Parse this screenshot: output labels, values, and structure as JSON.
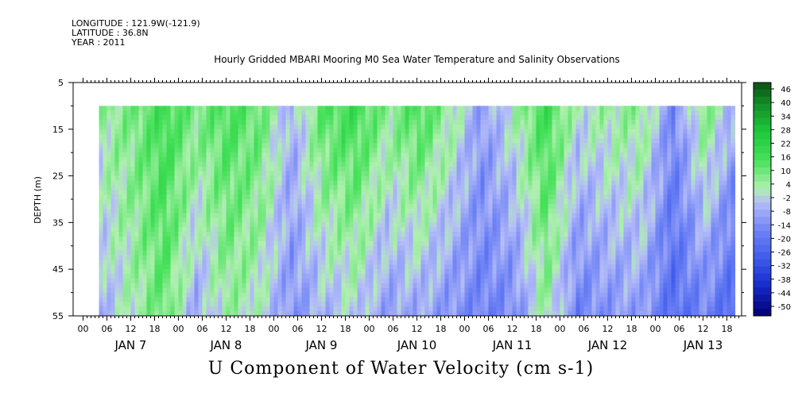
{
  "header": {
    "longitude": "LONGITUDE : 121.9W(-121.9)",
    "latitude": "LATITUDE : 36.8N",
    "year": "YEAR : 2011"
  },
  "chart_data": {
    "type": "heatmap",
    "title": "Hourly Gridded MBARI Mooring M0 Sea Water Temperature and Salinity Observations",
    "xlabel": "U Component of Water Velocity (cm s-1)",
    "ylabel": "DEPTH (m)",
    "y_ticks": [
      5,
      15,
      25,
      35,
      45,
      55
    ],
    "ylim": [
      55,
      5
    ],
    "data_depth_range": [
      10,
      55
    ],
    "x_hour_ticks": [
      "00",
      "06",
      "12",
      "18",
      "00",
      "06",
      "12",
      "18",
      "00",
      "06",
      "12",
      "18",
      "00",
      "06",
      "12",
      "18",
      "00",
      "06",
      "12",
      "18",
      "00",
      "06",
      "12",
      "18",
      "00",
      "06",
      "12",
      "18"
    ],
    "x_day_labels": [
      "JAN  7",
      "JAN  8",
      "JAN  9",
      "JAN 10",
      "JAN 11",
      "JAN 12",
      "JAN 13"
    ],
    "data_time_start": "JAN 7 04:00",
    "data_time_end": "JAN 13 23:00",
    "colorbar_labels": [
      "46",
      "40",
      "34",
      "28",
      "22",
      "16",
      "10",
      "4",
      "-2",
      "-8",
      "-14",
      "-20",
      "-26",
      "-32",
      "-38",
      "-44",
      "-50"
    ],
    "colorbar_range": [
      -50,
      49
    ],
    "colors": {
      "positive": "#20e040",
      "negative": "#8c9cf4",
      "near_zero_pos": "#a8f0a8",
      "near_zero_neg": "#b4bcf8"
    },
    "approx_column_profile": [
      {
        "hour": 4,
        "upper": 6,
        "lower": -4
      },
      {
        "hour": 12,
        "upper": 10,
        "lower": 4
      },
      {
        "hour": 20,
        "upper": 18,
        "lower": 12
      },
      {
        "hour": 28,
        "upper": 10,
        "lower": -6
      },
      {
        "hour": 36,
        "upper": 16,
        "lower": 6
      },
      {
        "hour": 44,
        "upper": 12,
        "lower": 2
      },
      {
        "hour": 52,
        "upper": -4,
        "lower": -10
      },
      {
        "hour": 60,
        "upper": 14,
        "lower": -4
      },
      {
        "hour": 68,
        "upper": 18,
        "lower": 0
      },
      {
        "hour": 76,
        "upper": 8,
        "lower": -8
      },
      {
        "hour": 84,
        "upper": 16,
        "lower": -6
      },
      {
        "hour": 92,
        "upper": 6,
        "lower": -10
      },
      {
        "hour": 100,
        "upper": -8,
        "lower": -14
      },
      {
        "hour": 108,
        "upper": 4,
        "lower": -12
      },
      {
        "hour": 116,
        "upper": 18,
        "lower": 6
      },
      {
        "hour": 124,
        "upper": 2,
        "lower": -14
      },
      {
        "hour": 132,
        "upper": 6,
        "lower": -10
      },
      {
        "hour": 140,
        "upper": 8,
        "lower": -8
      },
      {
        "hour": 148,
        "upper": -12,
        "lower": -20
      },
      {
        "hour": 156,
        "upper": 10,
        "lower": -14
      },
      {
        "hour": 164,
        "upper": -6,
        "lower": -22
      }
    ]
  }
}
